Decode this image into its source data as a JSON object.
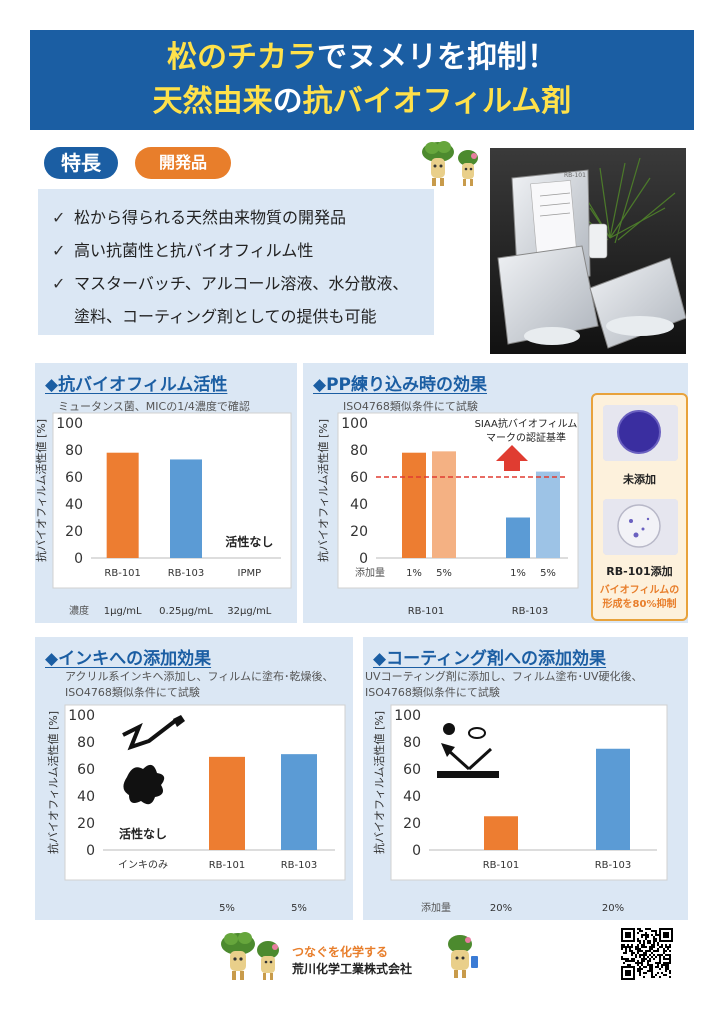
{
  "header": {
    "line1_a": "松のチカラ",
    "line1_b": "でヌメリを抑制！",
    "line2_a": "天然由来",
    "line2_b": "の",
    "line2_c": "抗バイオフィルム剤"
  },
  "badges": {
    "feature": "特長",
    "development": "開発品"
  },
  "features": {
    "check": "✓",
    "items": [
      "松から得られる天然由来物質の開発品",
      "高い抗菌性と抗バイオフィルム性",
      "マスターバッチ、アルコール溶液、水分散液、",
      "塗料、コーティング剤としての提供も可能"
    ]
  },
  "photo": {
    "bag_label": "RB-101"
  },
  "panels": {
    "biofilm": {
      "title": "◆抗バイオフィルム活性",
      "note": "ミュータンス菌、MICの1/4濃度で確認",
      "ylabel": "抗バイオフィルム活性値 [%]",
      "conc_label": "濃度",
      "no_activity": "活性なし"
    },
    "pp": {
      "title": "◆PP練り込み時の効果",
      "note": "ISO4768類似条件にて試験",
      "ylabel": "抗バイオフィルム活性値 [%]",
      "add_label": "添加量",
      "siaa_line1": "SIAA抗バイオフィルム",
      "siaa_line2": "マークの認証基準"
    },
    "ink": {
      "title": "◆インキへの添加効果",
      "note1": "アクリル系インキへ添加し、フィルムに塗布･乾燥後、",
      "note2": "ISO4768類似条件にて試験",
      "ylabel": "抗バイオフィルム活性値 [%]",
      "no_activity": "活性なし"
    },
    "coating": {
      "title": "◆コーティング剤への添加効果",
      "note1": "UVコーティング剤に添加し、フィルム塗布･UV硬化後、",
      "note2": "ISO4768類似条件にて試験",
      "ylabel": "抗バイオフィルム活性値 [%]",
      "add_label": "添加量"
    }
  },
  "inset": {
    "untreated": "未添加",
    "treated": "RB-101添加",
    "note1": "バイオフィルムの",
    "note2": "形成を80%抑制"
  },
  "footer": {
    "slogan": "つなぐを化学する",
    "company": "荒川化学工業株式会社"
  },
  "colors": {
    "orange": "#ED7D31",
    "blue": "#5B9BD5",
    "light_orange": "#F4B183",
    "light_blue": "#9DC3E6",
    "navy": "#1b5ea3",
    "red": "#e03c31"
  },
  "chart_data": [
    {
      "type": "bar",
      "title": "◆抗バイオフィルム活性",
      "ylabel": "抗バイオフィルム活性値 [%]",
      "ylim": [
        0,
        100
      ],
      "yticks": [
        0,
        20,
        40,
        60,
        80,
        100
      ],
      "categories": [
        "RB-101",
        "RB-103",
        "IPMP"
      ],
      "sublabels": [
        "1μg/mL",
        "0.25μg/mL",
        "32μg/mL"
      ],
      "values": [
        78,
        73,
        0
      ],
      "annotations": [
        "活性なし"
      ]
    },
    {
      "type": "bar",
      "title": "◆PP練り込み時の効果",
      "ylabel": "抗バイオフィルム活性値 [%]",
      "ylim": [
        0,
        100
      ],
      "yticks": [
        0,
        20,
        40,
        60,
        80,
        100
      ],
      "groups": [
        "RB-101",
        "RB-103"
      ],
      "categories": [
        "1%",
        "5%",
        "1%",
        "5%"
      ],
      "values": [
        78,
        79,
        30,
        64
      ],
      "threshold": 60
    },
    {
      "type": "bar",
      "title": "◆インキへの添加効果",
      "ylabel": "抗バイオフィルム活性値 [%]",
      "ylim": [
        0,
        100
      ],
      "yticks": [
        0,
        20,
        40,
        60,
        80,
        100
      ],
      "categories": [
        "インキのみ",
        "RB-101",
        "RB-103"
      ],
      "sublabels": [
        "",
        "5%",
        "5%"
      ],
      "values": [
        0,
        69,
        71
      ]
    },
    {
      "type": "bar",
      "title": "◆コーティング剤への添加効果",
      "ylabel": "抗バイオフィルム活性値 [%]",
      "ylim": [
        0,
        100
      ],
      "yticks": [
        0,
        20,
        40,
        60,
        80,
        100
      ],
      "categories": [
        "RB-101",
        "RB-103"
      ],
      "sublabels": [
        "20%",
        "20%"
      ],
      "values": [
        25,
        75
      ]
    }
  ]
}
